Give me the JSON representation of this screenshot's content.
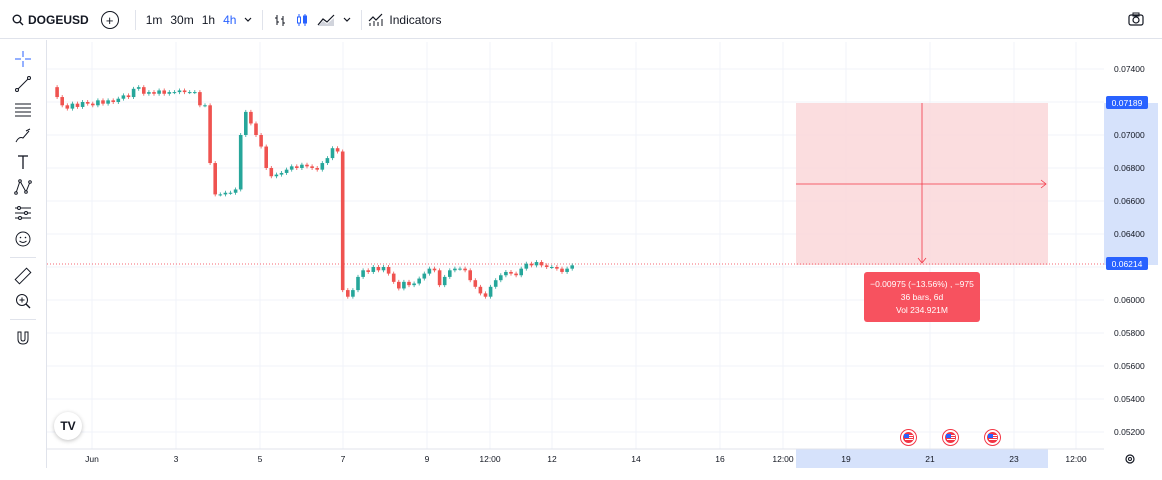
{
  "toolbar": {
    "symbol": "DOGEUSD",
    "intervals": [
      "1m",
      "30m",
      "1h",
      "4h"
    ],
    "active_interval": "4h",
    "indicators_label": "Indicators"
  },
  "left_tools": [
    "crosshair-icon",
    "trend-line-icon",
    "fib-retracement-icon",
    "brush-icon",
    "text-icon",
    "pattern-icon",
    "forecast-icon",
    "emoji-icon",
    "ruler-icon",
    "zoom-in-icon",
    "magnet-icon"
  ],
  "price_axis": {
    "ticks": [
      "0.07400",
      "0.07200",
      "0.07000",
      "0.06800",
      "0.06600",
      "0.06400",
      "0.06200",
      "0.06000",
      "0.05800",
      "0.05600",
      "0.05400",
      "0.05200"
    ],
    "top_marker": "0.07189",
    "current_marker": "0.06214"
  },
  "time_axis": {
    "labels": [
      "Jun",
      "3",
      "5",
      "7",
      "9",
      "12:00",
      "12",
      "14",
      "16",
      "12:00",
      "19",
      "21",
      "23",
      "12:00"
    ]
  },
  "measure_tooltip": {
    "line1": "−0.00975 (−13.56%) , −975",
    "line2": "36 bars, 6d",
    "line3": "Vol 234.921M"
  },
  "colors": {
    "up": "#26a69a",
    "down": "#ef5350",
    "accent": "#2962ff",
    "measure_zone": "#fbd9dc",
    "tooltip": "#f7525f"
  }
}
